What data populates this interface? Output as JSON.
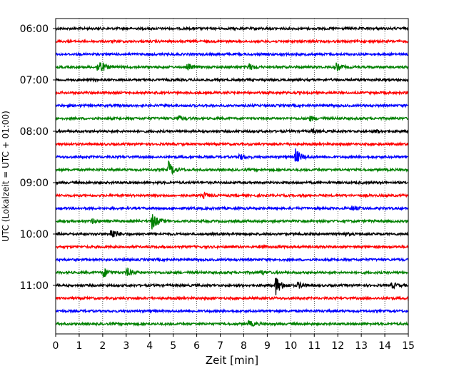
{
  "chart_data": {
    "type": "line",
    "title": "",
    "xlabel": "Zeit  [min]",
    "ylabel": "UTC (Lokalzeit = UTC + 01:00)",
    "xlim": [
      0,
      15
    ],
    "x_ticks": [
      0,
      1,
      2,
      3,
      4,
      5,
      6,
      7,
      8,
      9,
      10,
      11,
      12,
      13,
      14,
      15
    ],
    "y_tick_labels": [
      "06:00",
      "07:00",
      "08:00",
      "09:00",
      "10:00",
      "11:00"
    ],
    "grid": "vertical dotted",
    "colors": [
      "#000000",
      "#ff0000",
      "#0000ff",
      "#008000"
    ],
    "traces": [
      {
        "start": "06:00",
        "color": "#000000",
        "events": []
      },
      {
        "start": "06:15",
        "color": "#ff0000",
        "events": []
      },
      {
        "start": "06:30",
        "color": "#0000ff",
        "events": []
      },
      {
        "start": "06:45",
        "color": "#008000",
        "events": [
          {
            "t": 1.8,
            "amp": 1.0
          },
          {
            "t": 5.6,
            "amp": 0.3
          },
          {
            "t": 8.2,
            "amp": 0.35
          },
          {
            "t": 11.9,
            "amp": 0.45
          }
        ]
      },
      {
        "start": "07:00",
        "color": "#000000",
        "events": []
      },
      {
        "start": "07:15",
        "color": "#ff0000",
        "events": []
      },
      {
        "start": "07:30",
        "color": "#0000ff",
        "events": []
      },
      {
        "start": "07:45",
        "color": "#008000",
        "events": [
          {
            "t": 5.2,
            "amp": 0.3
          },
          {
            "t": 10.8,
            "amp": 0.25
          }
        ]
      },
      {
        "start": "08:00",
        "color": "#000000",
        "events": [
          {
            "t": 10.9,
            "amp": 0.2
          },
          {
            "t": 13.6,
            "amp": 0.2
          }
        ]
      },
      {
        "start": "08:15",
        "color": "#ff0000",
        "events": []
      },
      {
        "start": "08:30",
        "color": "#0000ff",
        "events": [
          {
            "t": 7.8,
            "amp": 0.3
          },
          {
            "t": 10.2,
            "amp": 0.8
          }
        ]
      },
      {
        "start": "08:45",
        "color": "#008000",
        "events": [
          {
            "t": 4.8,
            "amp": 0.8
          }
        ]
      },
      {
        "start": "09:00",
        "color": "#000000",
        "events": []
      },
      {
        "start": "09:15",
        "color": "#ff0000",
        "events": [
          {
            "t": 6.3,
            "amp": 0.25
          }
        ]
      },
      {
        "start": "09:30",
        "color": "#0000ff",
        "events": [
          {
            "t": 12.6,
            "amp": 0.2
          }
        ]
      },
      {
        "start": "09:45",
        "color": "#008000",
        "events": [
          {
            "t": 1.5,
            "amp": 0.25
          },
          {
            "t": 4.1,
            "amp": 0.9
          }
        ]
      },
      {
        "start": "10:00",
        "color": "#000000",
        "events": [
          {
            "t": 2.35,
            "amp": 0.6
          },
          {
            "t": 12.2,
            "amp": 0.2
          }
        ]
      },
      {
        "start": "10:15",
        "color": "#ff0000",
        "events": [
          {
            "t": 8.7,
            "amp": 0.2
          }
        ]
      },
      {
        "start": "10:30",
        "color": "#0000ff",
        "events": []
      },
      {
        "start": "10:45",
        "color": "#008000",
        "events": [
          {
            "t": 2.0,
            "amp": 0.55
          },
          {
            "t": 3.0,
            "amp": 0.45
          },
          {
            "t": 8.7,
            "amp": 0.2
          }
        ]
      },
      {
        "start": "11:00",
        "color": "#000000",
        "events": [
          {
            "t": 9.35,
            "amp": 1.0
          },
          {
            "t": 10.3,
            "amp": 0.3
          },
          {
            "t": 14.3,
            "amp": 0.3
          }
        ]
      },
      {
        "start": "11:15",
        "color": "#ff0000",
        "events": []
      },
      {
        "start": "11:30",
        "color": "#0000ff",
        "events": []
      },
      {
        "start": "11:45",
        "color": "#008000",
        "events": [
          {
            "t": 8.2,
            "amp": 0.3
          }
        ]
      }
    ]
  }
}
